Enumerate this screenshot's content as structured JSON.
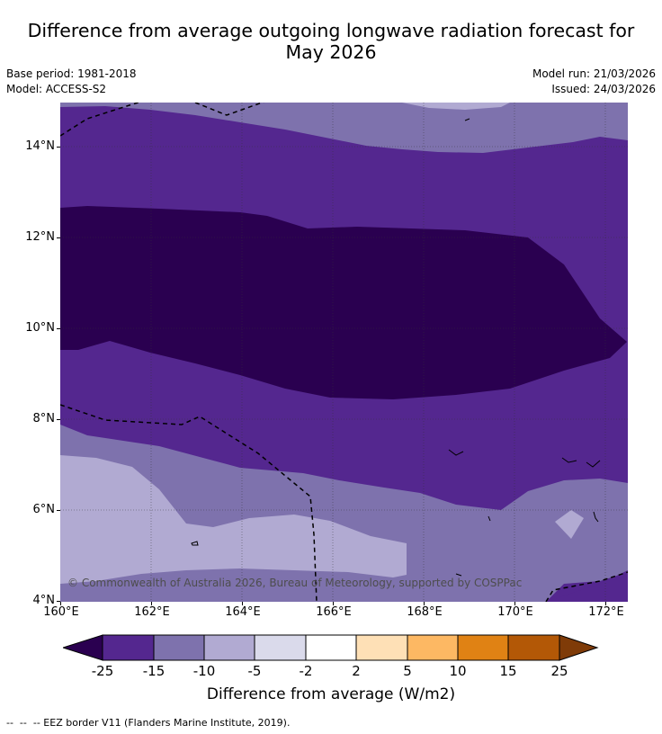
{
  "title_line1": "Difference from average outgoing longwave radiation forecast for",
  "title_line2": "May 2026",
  "base_period": "Base period: 1981-2018",
  "model": "Model: ACCESS-S2",
  "model_run": "Model run: 21/03/2026",
  "issued": "Issued: 24/03/2026",
  "copyright": "© Commonwealth of Australia 2026, Bureau of Meteorology, supported by COSPPac",
  "map": {
    "lon_range": [
      160,
      172.5
    ],
    "lat_range": [
      4,
      15
    ],
    "grid": true,
    "lat_ticks": [
      "14°N",
      "12°N",
      "10°N",
      "8°N",
      "6°N",
      "4°N"
    ],
    "lon_ticks": [
      "160°E",
      "162°E",
      "164°E",
      "166°E",
      "168°E",
      "170°E",
      "172°E"
    ],
    "overlay": "EEZ border (dashed)"
  },
  "colorbar": {
    "label": "Difference from average (W/m2)",
    "ticks": [
      "-25",
      "-15",
      "-10",
      "-5",
      "-2",
      "2",
      "5",
      "10",
      "15",
      "25"
    ],
    "colors": {
      "below_-25": "#2a0050",
      "-25_to_-15": "#54278f",
      "-15_to_-10": "#7e72ad",
      "-10_to_-5": "#b1aad2",
      "-5_to_-2": "#dadaeb",
      "-2_to_2": "#ffffff",
      "2_to_5": "#fee0b6",
      "5_to_10": "#fdb863",
      "10_to_15": "#e08214",
      "15_to_25": "#b35806",
      "above_25": "#7f3b08"
    }
  },
  "footnote": "--  --  -- EEZ border V11 (Flanders Marine Institute, 2019)."
}
